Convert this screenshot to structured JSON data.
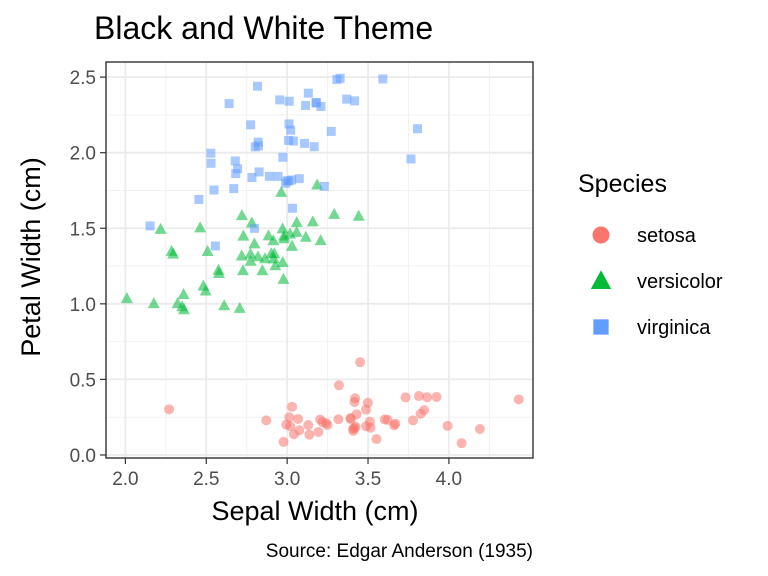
{
  "chart_data": {
    "type": "scatter",
    "title": "Black and White Theme",
    "xlabel": "Sepal Width (cm)",
    "ylabel": "Petal Width (cm)",
    "caption": "Source: Edgar Anderson (1935)",
    "xlim": [
      1.88,
      4.52
    ],
    "ylim": [
      -0.02,
      2.6
    ],
    "x_ticks": [
      2.0,
      2.5,
      3.0,
      3.5,
      4.0
    ],
    "x_tick_labels": [
      "2.0",
      "2.5",
      "3.0",
      "3.5",
      "4.0"
    ],
    "y_ticks": [
      0.0,
      0.5,
      1.0,
      1.5,
      2.0,
      2.5
    ],
    "y_tick_labels": [
      "0.0",
      "0.5",
      "1.0",
      "1.5",
      "2.0",
      "2.5"
    ],
    "grid": true,
    "theme": "bw",
    "legend": {
      "title": "Species",
      "position": "right"
    },
    "series": [
      {
        "name": "setosa",
        "shape": "circle",
        "color": "#F8766D",
        "points": [
          [
            3.5,
            0.2
          ],
          [
            3.0,
            0.2
          ],
          [
            3.2,
            0.2
          ],
          [
            3.1,
            0.2
          ],
          [
            3.6,
            0.2
          ],
          [
            3.9,
            0.4
          ],
          [
            3.4,
            0.3
          ],
          [
            3.4,
            0.2
          ],
          [
            2.9,
            0.2
          ],
          [
            3.1,
            0.1
          ],
          [
            3.7,
            0.2
          ],
          [
            3.4,
            0.2
          ],
          [
            3.0,
            0.1
          ],
          [
            3.0,
            0.1
          ],
          [
            4.0,
            0.2
          ],
          [
            4.4,
            0.4
          ],
          [
            3.9,
            0.4
          ],
          [
            3.5,
            0.3
          ],
          [
            3.8,
            0.3
          ],
          [
            3.8,
            0.3
          ],
          [
            3.4,
            0.2
          ],
          [
            3.7,
            0.4
          ],
          [
            3.6,
            0.2
          ],
          [
            3.3,
            0.5
          ],
          [
            3.4,
            0.2
          ],
          [
            3.0,
            0.2
          ],
          [
            3.4,
            0.4
          ],
          [
            3.5,
            0.2
          ],
          [
            3.4,
            0.2
          ],
          [
            3.2,
            0.2
          ],
          [
            3.1,
            0.2
          ],
          [
            3.4,
            0.4
          ],
          [
            4.1,
            0.1
          ],
          [
            4.2,
            0.2
          ],
          [
            3.1,
            0.2
          ],
          [
            3.2,
            0.2
          ],
          [
            3.5,
            0.2
          ],
          [
            3.6,
            0.1
          ],
          [
            3.0,
            0.2
          ],
          [
            3.4,
            0.2
          ],
          [
            3.5,
            0.3
          ],
          [
            2.3,
            0.3
          ],
          [
            3.2,
            0.2
          ],
          [
            3.5,
            0.6
          ],
          [
            3.8,
            0.4
          ],
          [
            3.0,
            0.3
          ],
          [
            3.8,
            0.2
          ],
          [
            3.2,
            0.2
          ],
          [
            3.7,
            0.2
          ],
          [
            3.3,
            0.2
          ]
        ]
      },
      {
        "name": "versicolor",
        "shape": "triangle",
        "color": "#00BA38",
        "points": [
          [
            3.2,
            1.4
          ],
          [
            3.2,
            1.5
          ],
          [
            3.1,
            1.5
          ],
          [
            2.3,
            1.3
          ],
          [
            2.8,
            1.5
          ],
          [
            2.8,
            1.3
          ],
          [
            3.3,
            1.6
          ],
          [
            2.4,
            1.0
          ],
          [
            2.9,
            1.3
          ],
          [
            2.7,
            1.4
          ],
          [
            2.0,
            1.0
          ],
          [
            3.0,
            1.5
          ],
          [
            2.2,
            1.0
          ],
          [
            2.9,
            1.4
          ],
          [
            2.9,
            1.3
          ],
          [
            3.1,
            1.4
          ],
          [
            3.0,
            1.5
          ],
          [
            2.7,
            1.0
          ],
          [
            2.2,
            1.5
          ],
          [
            2.5,
            1.1
          ],
          [
            3.2,
            1.8
          ],
          [
            2.8,
            1.3
          ],
          [
            2.5,
            1.5
          ],
          [
            2.8,
            1.2
          ],
          [
            2.9,
            1.3
          ],
          [
            3.0,
            1.4
          ],
          [
            2.8,
            1.4
          ],
          [
            3.0,
            1.7
          ],
          [
            2.9,
            1.5
          ],
          [
            2.6,
            1.0
          ],
          [
            2.4,
            1.1
          ],
          [
            2.4,
            1.0
          ],
          [
            2.7,
            1.2
          ],
          [
            2.7,
            1.6
          ],
          [
            3.0,
            1.5
          ],
          [
            3.4,
            1.6
          ],
          [
            3.1,
            1.5
          ],
          [
            2.3,
            1.3
          ],
          [
            3.0,
            1.3
          ],
          [
            2.5,
            1.3
          ],
          [
            2.6,
            1.2
          ],
          [
            3.0,
            1.4
          ],
          [
            2.6,
            1.2
          ],
          [
            2.3,
            1.0
          ],
          [
            2.7,
            1.3
          ],
          [
            3.0,
            1.2
          ],
          [
            2.9,
            1.3
          ],
          [
            2.9,
            1.3
          ],
          [
            2.5,
            1.1
          ],
          [
            2.8,
            1.3
          ]
        ]
      },
      {
        "name": "virginica",
        "shape": "square",
        "color": "#619CFF",
        "points": [
          [
            3.3,
            2.5
          ],
          [
            2.7,
            1.9
          ],
          [
            3.0,
            2.1
          ],
          [
            2.9,
            1.8
          ],
          [
            3.0,
            2.2
          ],
          [
            3.0,
            2.1
          ],
          [
            2.5,
            1.7
          ],
          [
            2.9,
            1.8
          ],
          [
            2.5,
            1.8
          ],
          [
            3.6,
            2.5
          ],
          [
            3.2,
            2.0
          ],
          [
            2.7,
            1.9
          ],
          [
            3.0,
            2.1
          ],
          [
            2.5,
            2.0
          ],
          [
            2.8,
            2.4
          ],
          [
            3.2,
            2.3
          ],
          [
            3.0,
            1.8
          ],
          [
            3.8,
            2.2
          ],
          [
            2.6,
            2.3
          ],
          [
            2.2,
            1.5
          ],
          [
            3.2,
            2.3
          ],
          [
            2.8,
            2.0
          ],
          [
            2.8,
            2.0
          ],
          [
            2.7,
            1.8
          ],
          [
            3.3,
            2.1
          ],
          [
            3.2,
            1.8
          ],
          [
            2.8,
            1.8
          ],
          [
            3.0,
            1.8
          ],
          [
            2.8,
            2.1
          ],
          [
            3.0,
            1.6
          ],
          [
            2.8,
            1.9
          ],
          [
            3.8,
            2.0
          ],
          [
            2.8,
            2.2
          ],
          [
            2.8,
            1.5
          ],
          [
            2.6,
            1.4
          ],
          [
            3.0,
            2.3
          ],
          [
            3.4,
            2.4
          ],
          [
            3.1,
            1.8
          ],
          [
            3.0,
            1.8
          ],
          [
            3.1,
            2.1
          ],
          [
            3.1,
            2.4
          ],
          [
            3.1,
            2.3
          ],
          [
            2.7,
            1.9
          ],
          [
            3.2,
            2.3
          ],
          [
            3.3,
            2.5
          ],
          [
            3.0,
            2.3
          ],
          [
            2.5,
            1.9
          ],
          [
            3.0,
            2.0
          ],
          [
            3.4,
            2.3
          ],
          [
            3.0,
            1.8
          ]
        ]
      }
    ]
  }
}
